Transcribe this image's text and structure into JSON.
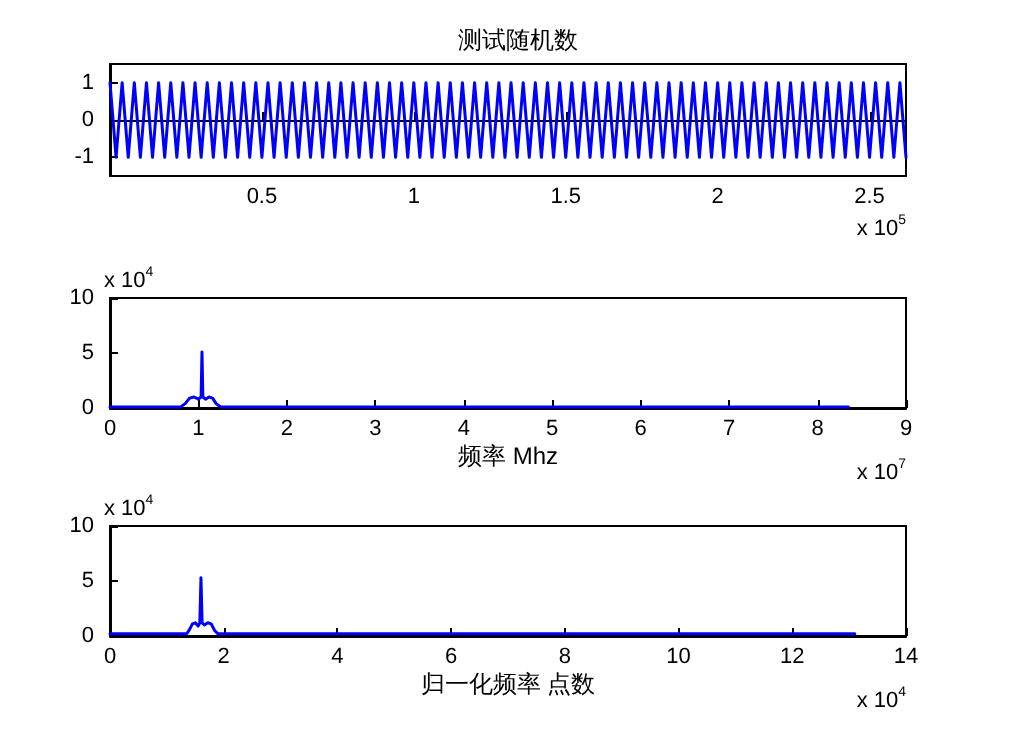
{
  "chart_data": [
    {
      "type": "line",
      "title": "测试随机数",
      "marker": "none",
      "line_style": "solid",
      "xlim": [
        0,
        2.62
      ],
      "xticks": [
        0.5,
        1,
        1.5,
        2,
        2.5
      ],
      "ylim": [
        -1.5,
        1.5
      ],
      "yticks": [
        -1,
        0,
        1
      ],
      "annotations": [
        "x 10$^{5}$"
      ],
      "series": [
        {
          "color": "#0000ff",
          "x": [
            0,
            0.02,
            0.04,
            0.06,
            0.08,
            0.1,
            0.12,
            0.14,
            0.16,
            0.18,
            0.2,
            0.22,
            0.24,
            0.26,
            0.28,
            0.3,
            0.32,
            0.34,
            0.36,
            0.38,
            0.4,
            0.42,
            0.44,
            0.46,
            0.48,
            0.5,
            0.52,
            0.54,
            0.56,
            0.58,
            0.6,
            0.62,
            0.64,
            0.66,
            0.68,
            0.7,
            0.72,
            0.74,
            0.76,
            0.78,
            0.8,
            0.82,
            0.84,
            0.86,
            0.88,
            0.9,
            0.92,
            0.94,
            0.96,
            0.98,
            1,
            1.02,
            1.04,
            1.06,
            1.08,
            1.1,
            1.12,
            1.14,
            1.16,
            1.18,
            1.2,
            1.22,
            1.24,
            1.26,
            1.28,
            1.3,
            1.32,
            1.34,
            1.36,
            1.38,
            1.4,
            1.42,
            1.44,
            1.46,
            1.48,
            1.5,
            1.52,
            1.54,
            1.56,
            1.58,
            1.6,
            1.62,
            1.64,
            1.66,
            1.68,
            1.7,
            1.72,
            1.74,
            1.76,
            1.78,
            1.8,
            1.82,
            1.84,
            1.86,
            1.88,
            1.9,
            1.92,
            1.94,
            1.96,
            1.98,
            2,
            2.02,
            2.04,
            2.06,
            2.08,
            2.1,
            2.12,
            2.14,
            2.16,
            2.18,
            2.2,
            2.22,
            2.24,
            2.26,
            2.28,
            2.3,
            2.32,
            2.34,
            2.36,
            2.38,
            2.4,
            2.42,
            2.44,
            2.46,
            2.48,
            2.5,
            2.52,
            2.54,
            2.56,
            2.58,
            2.6,
            2.62
          ],
          "values": [
            1,
            -1,
            1,
            -1,
            1,
            -1,
            1,
            -1,
            1,
            -1,
            1,
            -1,
            1,
            -1,
            1,
            -1,
            1,
            -1,
            1,
            -1,
            1,
            -1,
            1,
            -1,
            1,
            -1,
            1,
            -1,
            1,
            -1,
            1,
            -1,
            1,
            -1,
            1,
            -1,
            1,
            -1,
            1,
            -1,
            1,
            -1,
            1,
            -1,
            1,
            -1,
            1,
            -1,
            1,
            -1,
            1,
            -1,
            1,
            -1,
            1,
            -1,
            1,
            -1,
            1,
            -1,
            1,
            -1,
            1,
            -1,
            1,
            -1,
            1,
            -1,
            1,
            -1,
            1,
            -1,
            1,
            -1,
            1,
            -1,
            1,
            -1,
            1,
            -1,
            1,
            -1,
            1,
            -1,
            1,
            -1,
            1,
            -1,
            1,
            -1,
            1,
            -1,
            1,
            -1,
            1,
            -1,
            1,
            -1,
            1,
            -1,
            1,
            -1,
            1,
            -1,
            1,
            -1,
            1,
            -1,
            1,
            -1,
            1,
            -1,
            1,
            -1,
            1,
            -1,
            1,
            -1,
            1,
            -1,
            1,
            -1,
            1,
            -1,
            1,
            -1,
            1,
            -1,
            1,
            -1,
            1,
            -1
          ]
        }
      ]
    },
    {
      "type": "line",
      "xlabel": "频率 Mhz",
      "marker": "none",
      "line_style": "solid",
      "xlim": [
        0,
        9
      ],
      "xticks": [
        0,
        1,
        2,
        3,
        4,
        5,
        6,
        7,
        8,
        9
      ],
      "ylim": [
        0,
        10
      ],
      "yticks": [
        0,
        5,
        10
      ],
      "annotations": [
        "x 10$^{4}$",
        "x 10$^{7}$"
      ],
      "series": [
        {
          "color": "#0000ff",
          "x": [
            0,
            0.8,
            0.85,
            0.9,
            0.95,
            1.0,
            1.03,
            1.04,
            1.05,
            1.08,
            1.12,
            1.16,
            1.2,
            1.25,
            8.35
          ],
          "values": [
            0.1,
            0.1,
            0.4,
            0.9,
            1.0,
            0.8,
            1.0,
            5.1,
            1.0,
            0.8,
            1.0,
            0.9,
            0.4,
            0.1,
            0.1
          ]
        }
      ]
    },
    {
      "type": "line",
      "xlabel": "归一化频率 点数",
      "marker": "none",
      "line_style": "solid",
      "xlim": [
        0,
        14
      ],
      "xticks": [
        0,
        2,
        4,
        6,
        8,
        10,
        12,
        14
      ],
      "ylim": [
        0,
        10
      ],
      "yticks": [
        0,
        5,
        10
      ],
      "annotations": [
        "x 10$^{4}$",
        "x 10$^{4}$"
      ],
      "series": [
        {
          "color": "#0000ff",
          "x": [
            0,
            1.35,
            1.4,
            1.45,
            1.5,
            1.55,
            1.58,
            1.6,
            1.62,
            1.66,
            1.72,
            1.78,
            1.84,
            1.9,
            13.1
          ],
          "values": [
            0.2,
            0.2,
            0.6,
            1.1,
            1.2,
            0.9,
            1.2,
            5.3,
            1.2,
            1.0,
            1.2,
            1.1,
            0.5,
            0.2,
            0.2
          ]
        }
      ]
    }
  ]
}
